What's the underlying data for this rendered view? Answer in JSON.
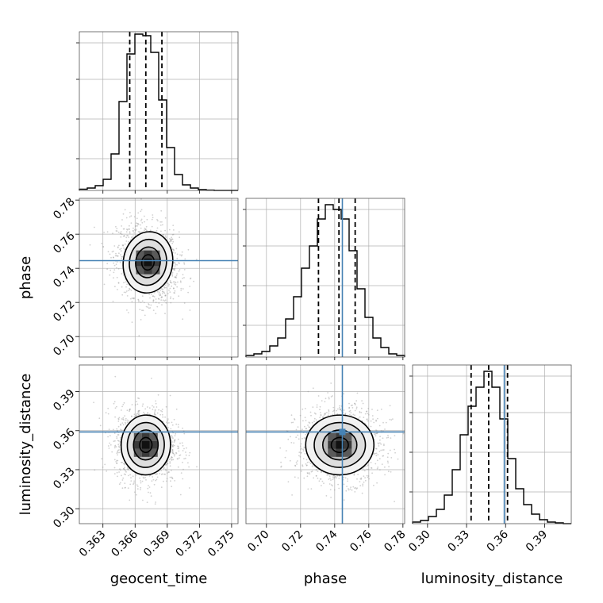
{
  "chart_data": {
    "type": "corner",
    "parameters": [
      {
        "name": "geocent_time",
        "label": "geocent_time",
        "range": [
          0.3608,
          0.3756
        ],
        "ticks": [
          "0.363",
          "0.366",
          "0.369",
          "0.372",
          "0.375"
        ],
        "tick_values": [
          0.363,
          0.366,
          0.369,
          0.372,
          0.375
        ],
        "quantiles": [
          0.3655,
          0.367,
          0.3685
        ],
        "injection": null,
        "hist": [
          0.008,
          0.015,
          0.03,
          0.07,
          0.23,
          0.56,
          0.86,
          0.985,
          0.975,
          0.87,
          0.57,
          0.27,
          0.1,
          0.035,
          0.015,
          0.005,
          0.002,
          0.0,
          0.0,
          0.0
        ]
      },
      {
        "name": "phase",
        "label": "phase",
        "range": [
          0.688,
          0.781
        ],
        "ticks": [
          "0.70",
          "0.72",
          "0.74",
          "0.76",
          "0.78"
        ],
        "tick_values": [
          0.7,
          0.72,
          0.74,
          0.76,
          0.78
        ],
        "quantiles": [
          0.7305,
          0.7425,
          0.752
        ],
        "injection": 0.7445,
        "hist": [
          0.01,
          0.02,
          0.035,
          0.07,
          0.12,
          0.24,
          0.38,
          0.56,
          0.7,
          0.87,
          0.96,
          0.93,
          0.87,
          0.67,
          0.43,
          0.25,
          0.12,
          0.06,
          0.02,
          0.01
        ]
      },
      {
        "name": "luminosity_distance",
        "label": "luminosity_distance",
        "range": [
          0.2885,
          0.4105
        ],
        "ticks": [
          "0.30",
          "0.33",
          "0.36",
          "0.39"
        ],
        "tick_values": [
          0.3,
          0.33,
          0.36,
          0.39
        ],
        "quantiles": [
          0.3335,
          0.347,
          0.3615
        ],
        "injection": 0.359,
        "hist": [
          0.01,
          0.02,
          0.045,
          0.09,
          0.18,
          0.34,
          0.56,
          0.74,
          0.86,
          0.96,
          0.86,
          0.66,
          0.41,
          0.22,
          0.12,
          0.06,
          0.025,
          0.01,
          0.005,
          0.0
        ]
      }
    ],
    "pairs": [
      {
        "x": "geocent_time",
        "y": "phase",
        "mean": [
          0.3672,
          0.7435
        ],
        "sigma": [
          0.00115,
          0.009
        ],
        "correlation": -0.2,
        "injection": [
          null,
          0.7445
        ]
      },
      {
        "x": "geocent_time",
        "y": "luminosity_distance",
        "mean": [
          0.367,
          0.349
        ],
        "sigma": [
          0.00115,
          0.0115
        ],
        "correlation": -0.05,
        "injection": [
          null,
          0.359
        ]
      },
      {
        "x": "phase",
        "y": "luminosity_distance",
        "mean": [
          0.743,
          0.349
        ],
        "sigma": [
          0.01,
          0.0115
        ],
        "correlation": 0.0,
        "injection": [
          0.7445,
          0.359
        ]
      }
    ],
    "contour_levels_sigma": [
      0.5,
      1.0,
      1.5,
      2.0
    ],
    "colors": {
      "histogram": "#000000",
      "quantile": "#000000",
      "injection": "#4682b4",
      "grid": "#b0b0b0"
    },
    "grid": true,
    "legend": "none"
  }
}
